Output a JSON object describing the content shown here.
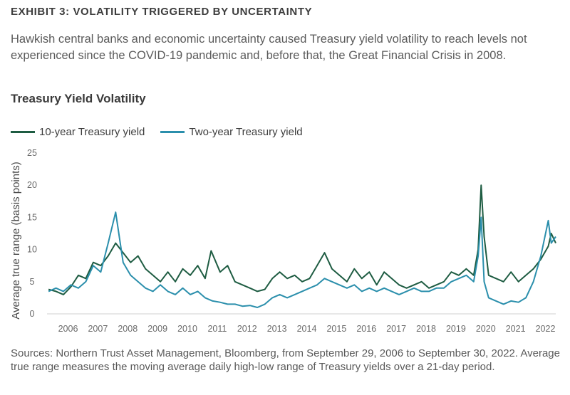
{
  "exhibit_label": "EXHIBIT 3: VOLATILITY TRIGGERED BY UNCERTAINTY",
  "intro_text": "Hawkish central banks and economic uncertainty caused Treasury yield volatility to reach levels not experienced since the COVID-19 pandemic and, before that, the Great Financial Crisis in 2008.",
  "sources_text": "Sources: Northern Trust Asset Management, Bloomberg, from September 29, 2006 to September 30, 2022. Average true range measures the moving average daily high-low range of Treasury yields over a 21-day period.",
  "chart_data": {
    "type": "line",
    "title": "Treasury Yield Volatility",
    "xlabel": "",
    "ylabel": "Average true range (basis points)",
    "xlim": [
      2005.7,
      2022.75
    ],
    "ylim": [
      0,
      25
    ],
    "yticks": [
      0,
      5,
      10,
      15,
      20,
      25
    ],
    "xticks": [
      "2006",
      "2007",
      "2008",
      "2009",
      "2010",
      "2011",
      "2012",
      "2013",
      "2014",
      "2015",
      "2016",
      "2017",
      "2018",
      "2019",
      "2020",
      "2021",
      "2022"
    ],
    "grid": false,
    "legend_position": "top-left",
    "series": [
      {
        "name": "10-year Treasury yield",
        "color": "#1e5c42",
        "points": [
          [
            2005.75,
            3.8
          ],
          [
            2006.0,
            3.5
          ],
          [
            2006.25,
            3.0
          ],
          [
            2006.5,
            4.2
          ],
          [
            2006.75,
            6.0
          ],
          [
            2007.0,
            5.5
          ],
          [
            2007.25,
            8.0
          ],
          [
            2007.5,
            7.5
          ],
          [
            2007.75,
            9.0
          ],
          [
            2008.0,
            11.0
          ],
          [
            2008.25,
            9.5
          ],
          [
            2008.5,
            8.0
          ],
          [
            2008.75,
            9.0
          ],
          [
            2009.0,
            7.0
          ],
          [
            2009.25,
            6.0
          ],
          [
            2009.5,
            5.0
          ],
          [
            2009.75,
            6.5
          ],
          [
            2010.0,
            5.0
          ],
          [
            2010.25,
            7.0
          ],
          [
            2010.5,
            6.0
          ],
          [
            2010.75,
            7.5
          ],
          [
            2011.0,
            5.5
          ],
          [
            2011.2,
            9.8
          ],
          [
            2011.5,
            6.5
          ],
          [
            2011.75,
            7.5
          ],
          [
            2012.0,
            5.0
          ],
          [
            2012.25,
            4.5
          ],
          [
            2012.5,
            4.0
          ],
          [
            2012.75,
            3.5
          ],
          [
            2013.0,
            3.8
          ],
          [
            2013.25,
            5.5
          ],
          [
            2013.5,
            6.5
          ],
          [
            2013.75,
            5.5
          ],
          [
            2014.0,
            6.0
          ],
          [
            2014.25,
            5.0
          ],
          [
            2014.5,
            5.5
          ],
          [
            2014.75,
            7.5
          ],
          [
            2015.0,
            9.5
          ],
          [
            2015.25,
            7.0
          ],
          [
            2015.5,
            6.0
          ],
          [
            2015.75,
            5.0
          ],
          [
            2016.0,
            7.0
          ],
          [
            2016.25,
            5.5
          ],
          [
            2016.5,
            6.5
          ],
          [
            2016.75,
            4.5
          ],
          [
            2017.0,
            6.5
          ],
          [
            2017.25,
            5.5
          ],
          [
            2017.5,
            4.5
          ],
          [
            2017.75,
            4.0
          ],
          [
            2018.0,
            4.5
          ],
          [
            2018.25,
            5.0
          ],
          [
            2018.5,
            4.0
          ],
          [
            2018.75,
            4.5
          ],
          [
            2019.0,
            5.0
          ],
          [
            2019.25,
            6.5
          ],
          [
            2019.5,
            6.0
          ],
          [
            2019.75,
            7.0
          ],
          [
            2020.0,
            6.0
          ],
          [
            2020.15,
            10.0
          ],
          [
            2020.25,
            20.0
          ],
          [
            2020.35,
            12.0
          ],
          [
            2020.5,
            6.0
          ],
          [
            2020.75,
            5.5
          ],
          [
            2021.0,
            5.0
          ],
          [
            2021.25,
            6.5
          ],
          [
            2021.5,
            5.0
          ],
          [
            2021.75,
            6.0
          ],
          [
            2022.0,
            7.0
          ],
          [
            2022.25,
            8.5
          ],
          [
            2022.5,
            10.5
          ],
          [
            2022.6,
            12.5
          ],
          [
            2022.75,
            11.0
          ]
        ]
      },
      {
        "name": "Two-year Treasury yield",
        "color": "#2b8fac",
        "points": [
          [
            2005.75,
            3.5
          ],
          [
            2006.0,
            4.0
          ],
          [
            2006.25,
            3.5
          ],
          [
            2006.5,
            4.5
          ],
          [
            2006.75,
            4.0
          ],
          [
            2007.0,
            5.0
          ],
          [
            2007.25,
            7.5
          ],
          [
            2007.5,
            6.5
          ],
          [
            2007.75,
            11.0
          ],
          [
            2008.0,
            15.8
          ],
          [
            2008.25,
            8.0
          ],
          [
            2008.5,
            6.0
          ],
          [
            2008.75,
            5.0
          ],
          [
            2009.0,
            4.0
          ],
          [
            2009.25,
            3.5
          ],
          [
            2009.5,
            4.5
          ],
          [
            2009.75,
            3.5
          ],
          [
            2010.0,
            3.0
          ],
          [
            2010.25,
            4.0
          ],
          [
            2010.5,
            3.0
          ],
          [
            2010.75,
            3.5
          ],
          [
            2011.0,
            2.5
          ],
          [
            2011.25,
            2.0
          ],
          [
            2011.5,
            1.8
          ],
          [
            2011.75,
            1.5
          ],
          [
            2012.0,
            1.5
          ],
          [
            2012.25,
            1.2
          ],
          [
            2012.5,
            1.3
          ],
          [
            2012.75,
            1.0
          ],
          [
            2013.0,
            1.5
          ],
          [
            2013.25,
            2.5
          ],
          [
            2013.5,
            3.0
          ],
          [
            2013.75,
            2.5
          ],
          [
            2014.0,
            3.0
          ],
          [
            2014.25,
            3.5
          ],
          [
            2014.5,
            4.0
          ],
          [
            2014.75,
            4.5
          ],
          [
            2015.0,
            5.5
          ],
          [
            2015.25,
            5.0
          ],
          [
            2015.5,
            4.5
          ],
          [
            2015.75,
            4.0
          ],
          [
            2016.0,
            4.5
          ],
          [
            2016.25,
            3.5
          ],
          [
            2016.5,
            4.0
          ],
          [
            2016.75,
            3.5
          ],
          [
            2017.0,
            4.0
          ],
          [
            2017.25,
            3.5
          ],
          [
            2017.5,
            3.0
          ],
          [
            2017.75,
            3.5
          ],
          [
            2018.0,
            4.0
          ],
          [
            2018.25,
            3.5
          ],
          [
            2018.5,
            3.5
          ],
          [
            2018.75,
            4.0
          ],
          [
            2019.0,
            4.0
          ],
          [
            2019.25,
            5.0
          ],
          [
            2019.5,
            5.5
          ],
          [
            2019.75,
            6.0
          ],
          [
            2020.0,
            5.0
          ],
          [
            2020.15,
            9.0
          ],
          [
            2020.25,
            15.0
          ],
          [
            2020.35,
            5.0
          ],
          [
            2020.5,
            2.5
          ],
          [
            2020.75,
            2.0
          ],
          [
            2021.0,
            1.5
          ],
          [
            2021.25,
            2.0
          ],
          [
            2021.5,
            1.8
          ],
          [
            2021.75,
            2.5
          ],
          [
            2022.0,
            5.0
          ],
          [
            2022.25,
            9.0
          ],
          [
            2022.5,
            14.5
          ],
          [
            2022.6,
            11.0
          ],
          [
            2022.75,
            12.0
          ]
        ]
      }
    ]
  }
}
